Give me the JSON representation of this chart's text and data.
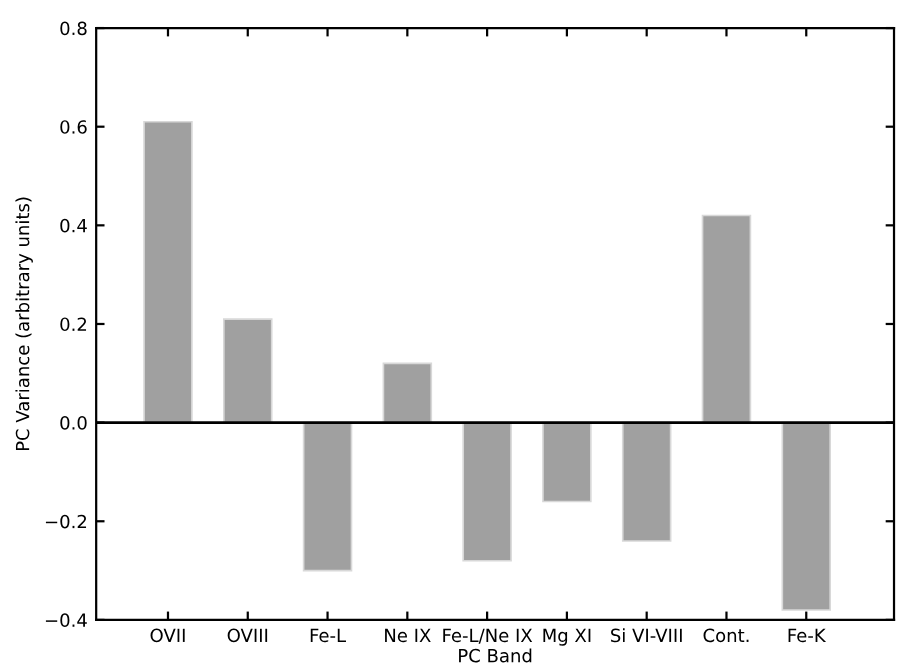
{
  "chart_data": {
    "type": "bar",
    "xlabel": "PC Band",
    "ylabel": "PC Variance (arbitrary units)",
    "categories": [
      "OVII",
      "OVIII",
      "Fe-L",
      "Ne IX",
      "Fe-L/Ne IX",
      "Mg XI",
      "Si VI-VIII",
      "Cont.",
      "Fe-K"
    ],
    "values": [
      0.61,
      0.21,
      -0.3,
      0.12,
      -0.28,
      -0.16,
      -0.24,
      0.42,
      -0.38
    ],
    "color": "#a0a0a0",
    "ylim": [
      -0.4,
      0.8
    ],
    "yticks": [
      {
        "value": -0.4,
        "label": "−0.4"
      },
      {
        "value": -0.2,
        "label": "−0.2"
      },
      {
        "value": 0.0,
        "label": "0.0"
      },
      {
        "value": 0.2,
        "label": "0.2"
      },
      {
        "value": 0.4,
        "label": "0.4"
      },
      {
        "value": 0.6,
        "label": "0.6"
      },
      {
        "value": 0.8,
        "label": "0.8"
      }
    ],
    "ref_lines": [
      {
        "axis": "y",
        "value": 0,
        "color": "#000000"
      }
    ],
    "grid": false
  }
}
